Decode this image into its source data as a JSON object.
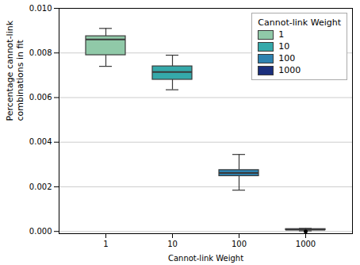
{
  "chart_data": {
    "type": "box",
    "xlabel": "Cannot-link Weight",
    "ylabel": "Percentage cannot-link\ncombinations in fit",
    "categories": [
      "1",
      "10",
      "100",
      "1000"
    ],
    "boxes": [
      {
        "whisker_low": 0.0074,
        "q1": 0.0079,
        "median": 0.0086,
        "q3": 0.00875,
        "whisker_high": 0.0091,
        "fliers": []
      },
      {
        "whisker_low": 0.00635,
        "q1": 0.0068,
        "median": 0.00715,
        "q3": 0.0074,
        "whisker_high": 0.0079,
        "fliers": []
      },
      {
        "whisker_low": 0.00185,
        "q1": 0.00248,
        "median": 0.00262,
        "q3": 0.00275,
        "whisker_high": 0.00345,
        "fliers": []
      },
      {
        "whisker_low": 2.5e-05,
        "q1": 6e-05,
        "median": 8e-05,
        "q3": 0.000105,
        "whisker_high": 0.000135,
        "fliers": [
          0.0
        ]
      }
    ],
    "colors": [
      "#90c9a8",
      "#35a9aa",
      "#2e82b0",
      "#1b2f7c"
    ],
    "ylim": [
      -0.0001,
      0.01
    ],
    "yticks": [
      {
        "value": 0,
        "label": "0.000"
      },
      {
        "value": 0.002,
        "label": "0.002"
      },
      {
        "value": 0.004,
        "label": "0.004"
      },
      {
        "value": 0.006,
        "label": "0.006"
      },
      {
        "value": 0.008,
        "label": "0.008"
      },
      {
        "value": 0.01,
        "label": "0.010"
      }
    ],
    "grid": true,
    "legend": "upper right",
    "legend_title": "Cannot-link Weight",
    "legend_labels": [
      "1",
      "10",
      "100",
      "1000"
    ]
  }
}
